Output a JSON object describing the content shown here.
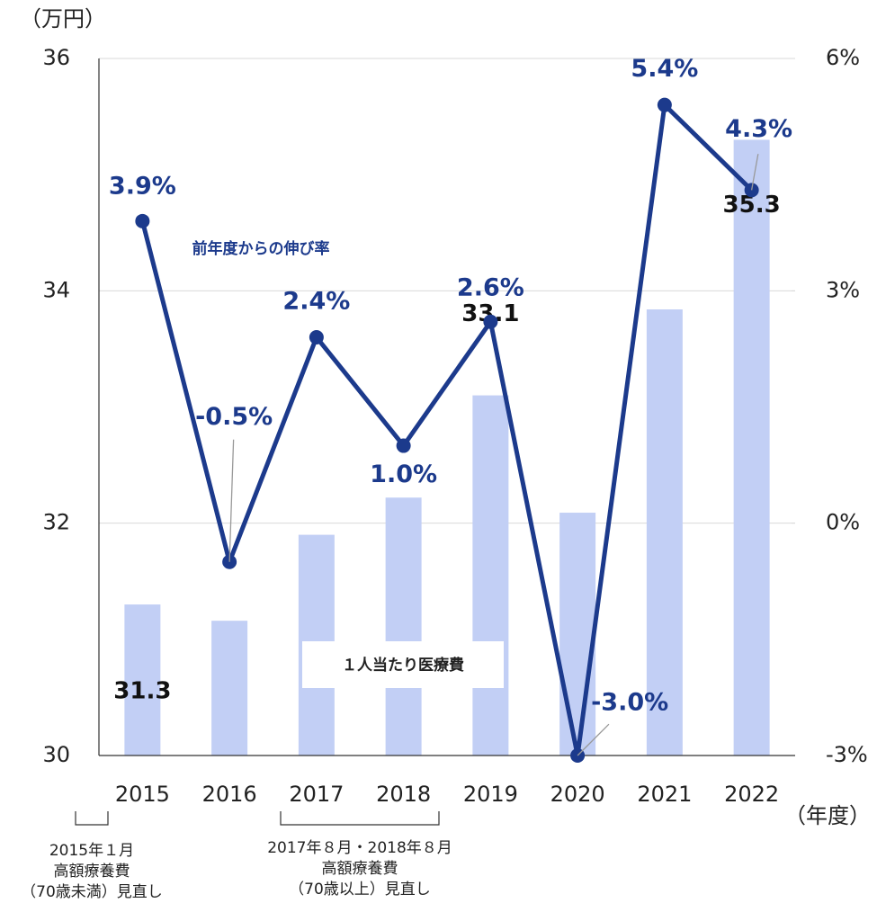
{
  "chart_data": {
    "type": "bar",
    "y_label": "（万円）",
    "x_label": "（年度）",
    "categories": [
      "2015",
      "2016",
      "2017",
      "2018",
      "2019",
      "2020",
      "2021",
      "2022"
    ],
    "series": [
      {
        "name": "１人当たり医療費",
        "type": "bar",
        "color": "#c2cff5",
        "values": [
          31.3,
          31.16,
          31.9,
          32.22,
          33.1,
          32.09,
          33.84,
          35.3
        ],
        "value_labels": [
          "31.3",
          null,
          null,
          null,
          "33.1",
          null,
          null,
          "35.3"
        ]
      },
      {
        "name": "前年度からの伸び率",
        "type": "line",
        "axis": "y2",
        "color": "#1c3a8c",
        "values": [
          3.9,
          -0.5,
          2.4,
          1.0,
          2.6,
          -3.0,
          5.4,
          4.3
        ],
        "value_labels": [
          "3.9%",
          "-0.5%",
          "2.4%",
          "1.0%",
          "2.6%",
          "-3.0%",
          "5.4%",
          "4.3%"
        ]
      }
    ],
    "ylim": [
      30,
      36
    ],
    "yticks": [
      30,
      32,
      34,
      36
    ],
    "y2lim": [
      -3,
      6
    ],
    "y2ticks": [
      {
        "value": -3,
        "label": "-3%"
      },
      {
        "value": 0,
        "label": "0%"
      },
      {
        "value": 3,
        "label": "3%"
      },
      {
        "value": 6,
        "label": "6%"
      }
    ],
    "grid": true,
    "annotations": [
      {
        "lines": [
          "2015年１月",
          "高額療養費",
          "（70歳未満）見直し"
        ]
      },
      {
        "lines": [
          "2017年８月・2018年８月",
          "高額療養費",
          "（70歳以上）見直し"
        ]
      }
    ]
  }
}
